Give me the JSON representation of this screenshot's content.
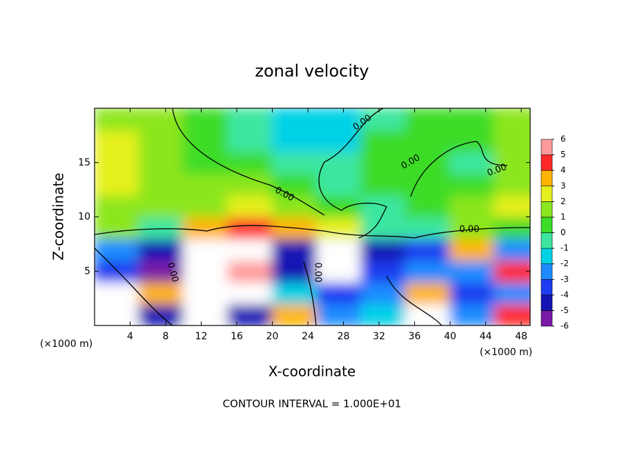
{
  "chart_data": {
    "type": "contour",
    "title": "zonal velocity",
    "xlabel": "X-coordinate",
    "ylabel": "Z-coordinate",
    "x_unit_label": "(×1000 m)",
    "x_unit_label_right": "(×1000 m)",
    "footer": "CONTOUR INTERVAL = 1.000E+01",
    "contour_labels": [
      "0.00",
      "0.00",
      "0.00",
      "0.00",
      "0.00",
      "0.00",
      "0.00"
    ],
    "xlim": [
      0,
      49
    ],
    "ylim": [
      0,
      20
    ],
    "xticks": [
      4,
      8,
      12,
      16,
      20,
      24,
      28,
      32,
      36,
      40,
      44,
      48
    ],
    "yticks": [
      5,
      10,
      15
    ],
    "x": [
      2.5,
      7.5,
      12.5,
      17.5,
      22.5,
      27.5,
      32.5,
      37.5,
      42.5,
      47.5
    ],
    "y": [
      1,
      3,
      5,
      7,
      9,
      11,
      13,
      15,
      17,
      19
    ],
    "z": [
      [
        7,
        -5,
        -7,
        -5,
        3,
        -3,
        -2,
        7,
        -3,
        4
      ],
      [
        7,
        3,
        -7,
        -7,
        -2,
        -4,
        -3,
        3,
        -4,
        -3
      ],
      [
        -4,
        -6,
        7,
        5,
        -5,
        7,
        -4,
        -3,
        -3,
        4
      ],
      [
        -3,
        -5,
        7,
        7,
        -5,
        7,
        -5,
        -4,
        3,
        -3
      ],
      [
        1,
        -1,
        3,
        4,
        3,
        2,
        -1,
        -1,
        1,
        0
      ],
      [
        1,
        1,
        1,
        2,
        1,
        0,
        -1,
        0,
        1,
        2
      ],
      [
        2,
        1,
        1,
        1,
        0,
        -1,
        0,
        0,
        0,
        1
      ],
      [
        2,
        1,
        0,
        0,
        -1,
        -1,
        0,
        0,
        -1,
        1
      ],
      [
        2,
        1,
        0,
        -1,
        -2,
        -2,
        0,
        0,
        0,
        1
      ],
      [
        1,
        1,
        0,
        -1,
        -2,
        -2,
        -1,
        0,
        0,
        1
      ]
    ],
    "colorbar_ticks": [
      -6,
      -5,
      -4,
      -3,
      -2,
      -1,
      0,
      1,
      2,
      3,
      4,
      5,
      6
    ],
    "colors": [
      "#7a1aa8",
      "#1414b4",
      "#1e3cf0",
      "#1e8cff",
      "#00d2e6",
      "#3ce6a0",
      "#3cdc28",
      "#8ce61e",
      "#e6f01e",
      "#ffb400",
      "#ff2828",
      "#ff9a9a"
    ],
    "out_of_range_color": "#ffffff"
  }
}
